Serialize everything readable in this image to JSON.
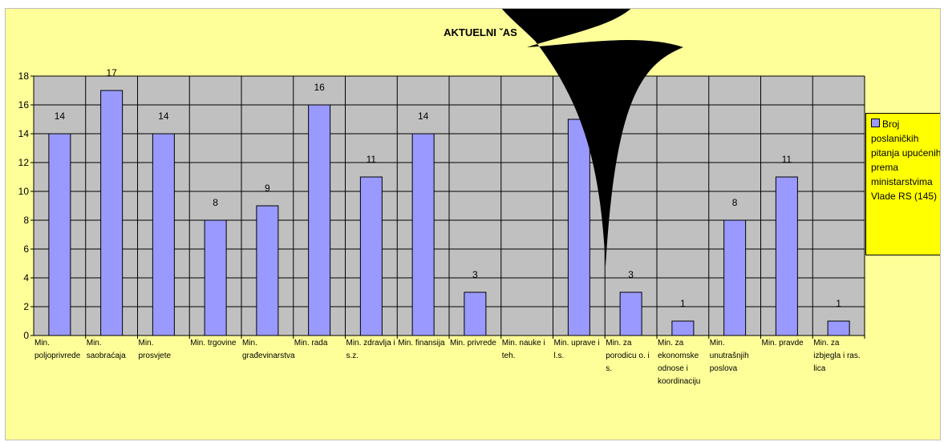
{
  "chart_data": {
    "type": "bar",
    "title": "AKTUELNI ˇAS",
    "categories": [
      "Min. poljoprivrede",
      "Min. saobraćaja",
      "Min. prosvjete",
      "Min. trgovine",
      "Min. građevinarstva",
      "Min. rada",
      "Min. zdravlja i s.z.",
      "Min. finansija",
      "Min. privrede",
      "Min. nauke i teh.",
      "Min. uprave i l.s.",
      "Min. za porodicu o. i s.",
      "Min. za ekonomske odnose i koordinaciju",
      "Min. unutrašnjih poslova",
      "Min. pravde",
      "Min. za izbjegla i ras. lica"
    ],
    "series": [
      {
        "name": "Broj poslaničkih pitanja upućenih prema ministarstvima Vlade RS (145)",
        "values": [
          14,
          17,
          14,
          8,
          9,
          16,
          11,
          14,
          3,
          0,
          15,
          3,
          1,
          8,
          11,
          1
        ]
      }
    ],
    "data_labels": [
      "14",
      "17",
      "14",
      "8",
      "9",
      "16",
      "11",
      "14",
      "3",
      "",
      "",
      "3",
      "1",
      "8",
      "11",
      "1"
    ],
    "ylim": [
      0,
      18
    ],
    "yticks": [
      0,
      2,
      4,
      6,
      8,
      10,
      12,
      14,
      16,
      18
    ],
    "grid": true,
    "legend_position": "right",
    "colors": {
      "bar_fill": "#9999ff",
      "bar_stroke": "#000000",
      "plot_bg": "#c0c0c0",
      "chart_bg": "#ffff99",
      "legend_bg": "#ffff00"
    }
  }
}
